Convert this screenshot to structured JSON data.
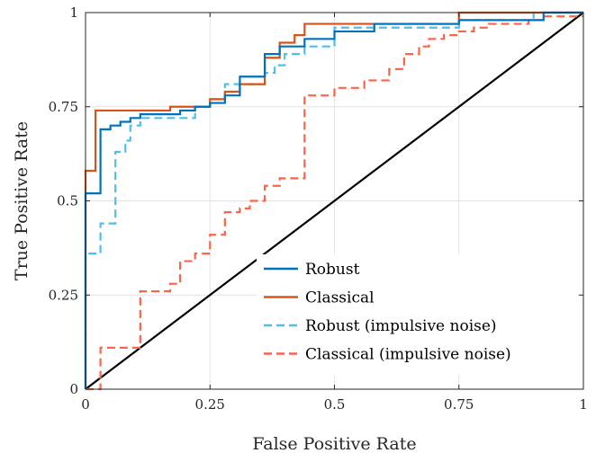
{
  "chart_data": {
    "type": "line",
    "title": "",
    "xlabel": "False Positive Rate",
    "ylabel": "True Positive Rate",
    "xlim": [
      0,
      1
    ],
    "ylim": [
      0,
      1
    ],
    "xticks": [
      0,
      0.25,
      0.5,
      0.75,
      1
    ],
    "yticks": [
      0,
      0.25,
      0.5,
      0.75,
      1
    ],
    "xtick_labels": [
      "0",
      "0.25",
      "0.5",
      "0.75",
      "1"
    ],
    "ytick_labels": [
      "0",
      "0.25",
      "0.5",
      "0.75",
      "1"
    ],
    "grid": true,
    "legend_position": "bottom-right",
    "series": [
      {
        "name": "Robust",
        "color": "#0072BD",
        "dash": "solid",
        "points": [
          [
            0,
            0
          ],
          [
            0,
            0.52
          ],
          [
            0.03,
            0.52
          ],
          [
            0.03,
            0.69
          ],
          [
            0.05,
            0.69
          ],
          [
            0.05,
            0.7
          ],
          [
            0.07,
            0.7
          ],
          [
            0.07,
            0.71
          ],
          [
            0.09,
            0.71
          ],
          [
            0.09,
            0.72
          ],
          [
            0.11,
            0.72
          ],
          [
            0.11,
            0.73
          ],
          [
            0.19,
            0.73
          ],
          [
            0.19,
            0.74
          ],
          [
            0.22,
            0.74
          ],
          [
            0.22,
            0.75
          ],
          [
            0.25,
            0.75
          ],
          [
            0.25,
            0.76
          ],
          [
            0.28,
            0.76
          ],
          [
            0.28,
            0.78
          ],
          [
            0.31,
            0.78
          ],
          [
            0.31,
            0.83
          ],
          [
            0.36,
            0.83
          ],
          [
            0.36,
            0.89
          ],
          [
            0.39,
            0.89
          ],
          [
            0.39,
            0.91
          ],
          [
            0.44,
            0.91
          ],
          [
            0.44,
            0.93
          ],
          [
            0.5,
            0.93
          ],
          [
            0.5,
            0.95
          ],
          [
            0.58,
            0.95
          ],
          [
            0.58,
            0.97
          ],
          [
            0.75,
            0.97
          ],
          [
            0.75,
            0.98
          ],
          [
            0.92,
            0.98
          ],
          [
            0.92,
            1.0
          ],
          [
            1,
            1
          ]
        ]
      },
      {
        "name": "Classical",
        "color": "#D95319",
        "dash": "solid",
        "points": [
          [
            0,
            0
          ],
          [
            0,
            0.58
          ],
          [
            0.02,
            0.58
          ],
          [
            0.02,
            0.74
          ],
          [
            0.17,
            0.74
          ],
          [
            0.17,
            0.75
          ],
          [
            0.25,
            0.75
          ],
          [
            0.25,
            0.77
          ],
          [
            0.28,
            0.77
          ],
          [
            0.28,
            0.79
          ],
          [
            0.31,
            0.79
          ],
          [
            0.31,
            0.81
          ],
          [
            0.36,
            0.81
          ],
          [
            0.36,
            0.88
          ],
          [
            0.39,
            0.88
          ],
          [
            0.39,
            0.92
          ],
          [
            0.42,
            0.92
          ],
          [
            0.42,
            0.94
          ],
          [
            0.44,
            0.94
          ],
          [
            0.44,
            0.97
          ],
          [
            0.75,
            0.97
          ],
          [
            0.75,
            1.0
          ],
          [
            1,
            1
          ]
        ]
      },
      {
        "name": "Robust (impulsive noise)",
        "color": "#4DBEEE",
        "dash": "dashed",
        "points": [
          [
            0,
            0
          ],
          [
            0,
            0.36
          ],
          [
            0.03,
            0.36
          ],
          [
            0.03,
            0.44
          ],
          [
            0.06,
            0.44
          ],
          [
            0.06,
            0.63
          ],
          [
            0.08,
            0.63
          ],
          [
            0.08,
            0.66
          ],
          [
            0.09,
            0.66
          ],
          [
            0.09,
            0.7
          ],
          [
            0.11,
            0.7
          ],
          [
            0.11,
            0.72
          ],
          [
            0.22,
            0.72
          ],
          [
            0.22,
            0.75
          ],
          [
            0.25,
            0.75
          ],
          [
            0.25,
            0.77
          ],
          [
            0.28,
            0.77
          ],
          [
            0.28,
            0.81
          ],
          [
            0.36,
            0.81
          ],
          [
            0.36,
            0.84
          ],
          [
            0.38,
            0.84
          ],
          [
            0.38,
            0.86
          ],
          [
            0.4,
            0.86
          ],
          [
            0.4,
            0.89
          ],
          [
            0.44,
            0.89
          ],
          [
            0.44,
            0.91
          ],
          [
            0.5,
            0.91
          ],
          [
            0.5,
            0.96
          ],
          [
            0.75,
            0.96
          ],
          [
            0.75,
            0.98
          ],
          [
            0.9,
            0.98
          ],
          [
            0.9,
            1.0
          ],
          [
            1,
            1
          ]
        ]
      },
      {
        "name": "Classical (impulsive noise)",
        "color": "#FF6347",
        "dash": "dashed",
        "points": [
          [
            0,
            0
          ],
          [
            0.03,
            0
          ],
          [
            0.03,
            0.11
          ],
          [
            0.11,
            0.11
          ],
          [
            0.11,
            0.26
          ],
          [
            0.17,
            0.26
          ],
          [
            0.17,
            0.28
          ],
          [
            0.19,
            0.28
          ],
          [
            0.19,
            0.34
          ],
          [
            0.22,
            0.34
          ],
          [
            0.22,
            0.36
          ],
          [
            0.25,
            0.36
          ],
          [
            0.25,
            0.41
          ],
          [
            0.28,
            0.41
          ],
          [
            0.28,
            0.47
          ],
          [
            0.31,
            0.47
          ],
          [
            0.31,
            0.48
          ],
          [
            0.33,
            0.48
          ],
          [
            0.33,
            0.5
          ],
          [
            0.36,
            0.5
          ],
          [
            0.36,
            0.54
          ],
          [
            0.39,
            0.54
          ],
          [
            0.39,
            0.56
          ],
          [
            0.44,
            0.56
          ],
          [
            0.44,
            0.78
          ],
          [
            0.5,
            0.78
          ],
          [
            0.5,
            0.8
          ],
          [
            0.56,
            0.8
          ],
          [
            0.56,
            0.82
          ],
          [
            0.61,
            0.82
          ],
          [
            0.61,
            0.85
          ],
          [
            0.64,
            0.85
          ],
          [
            0.64,
            0.89
          ],
          [
            0.67,
            0.89
          ],
          [
            0.67,
            0.91
          ],
          [
            0.69,
            0.91
          ],
          [
            0.69,
            0.93
          ],
          [
            0.72,
            0.93
          ],
          [
            0.72,
            0.94
          ],
          [
            0.75,
            0.94
          ],
          [
            0.75,
            0.95
          ],
          [
            0.78,
            0.95
          ],
          [
            0.78,
            0.96
          ],
          [
            0.81,
            0.96
          ],
          [
            0.81,
            0.97
          ],
          [
            0.89,
            0.97
          ],
          [
            0.89,
            0.98
          ],
          [
            0.92,
            0.98
          ],
          [
            0.92,
            0.99
          ],
          [
            1,
            0.99
          ]
        ]
      },
      {
        "name": "",
        "color": "#000000",
        "dash": "solid",
        "points": [
          [
            0,
            0
          ],
          [
            1,
            1
          ]
        ]
      }
    ]
  }
}
